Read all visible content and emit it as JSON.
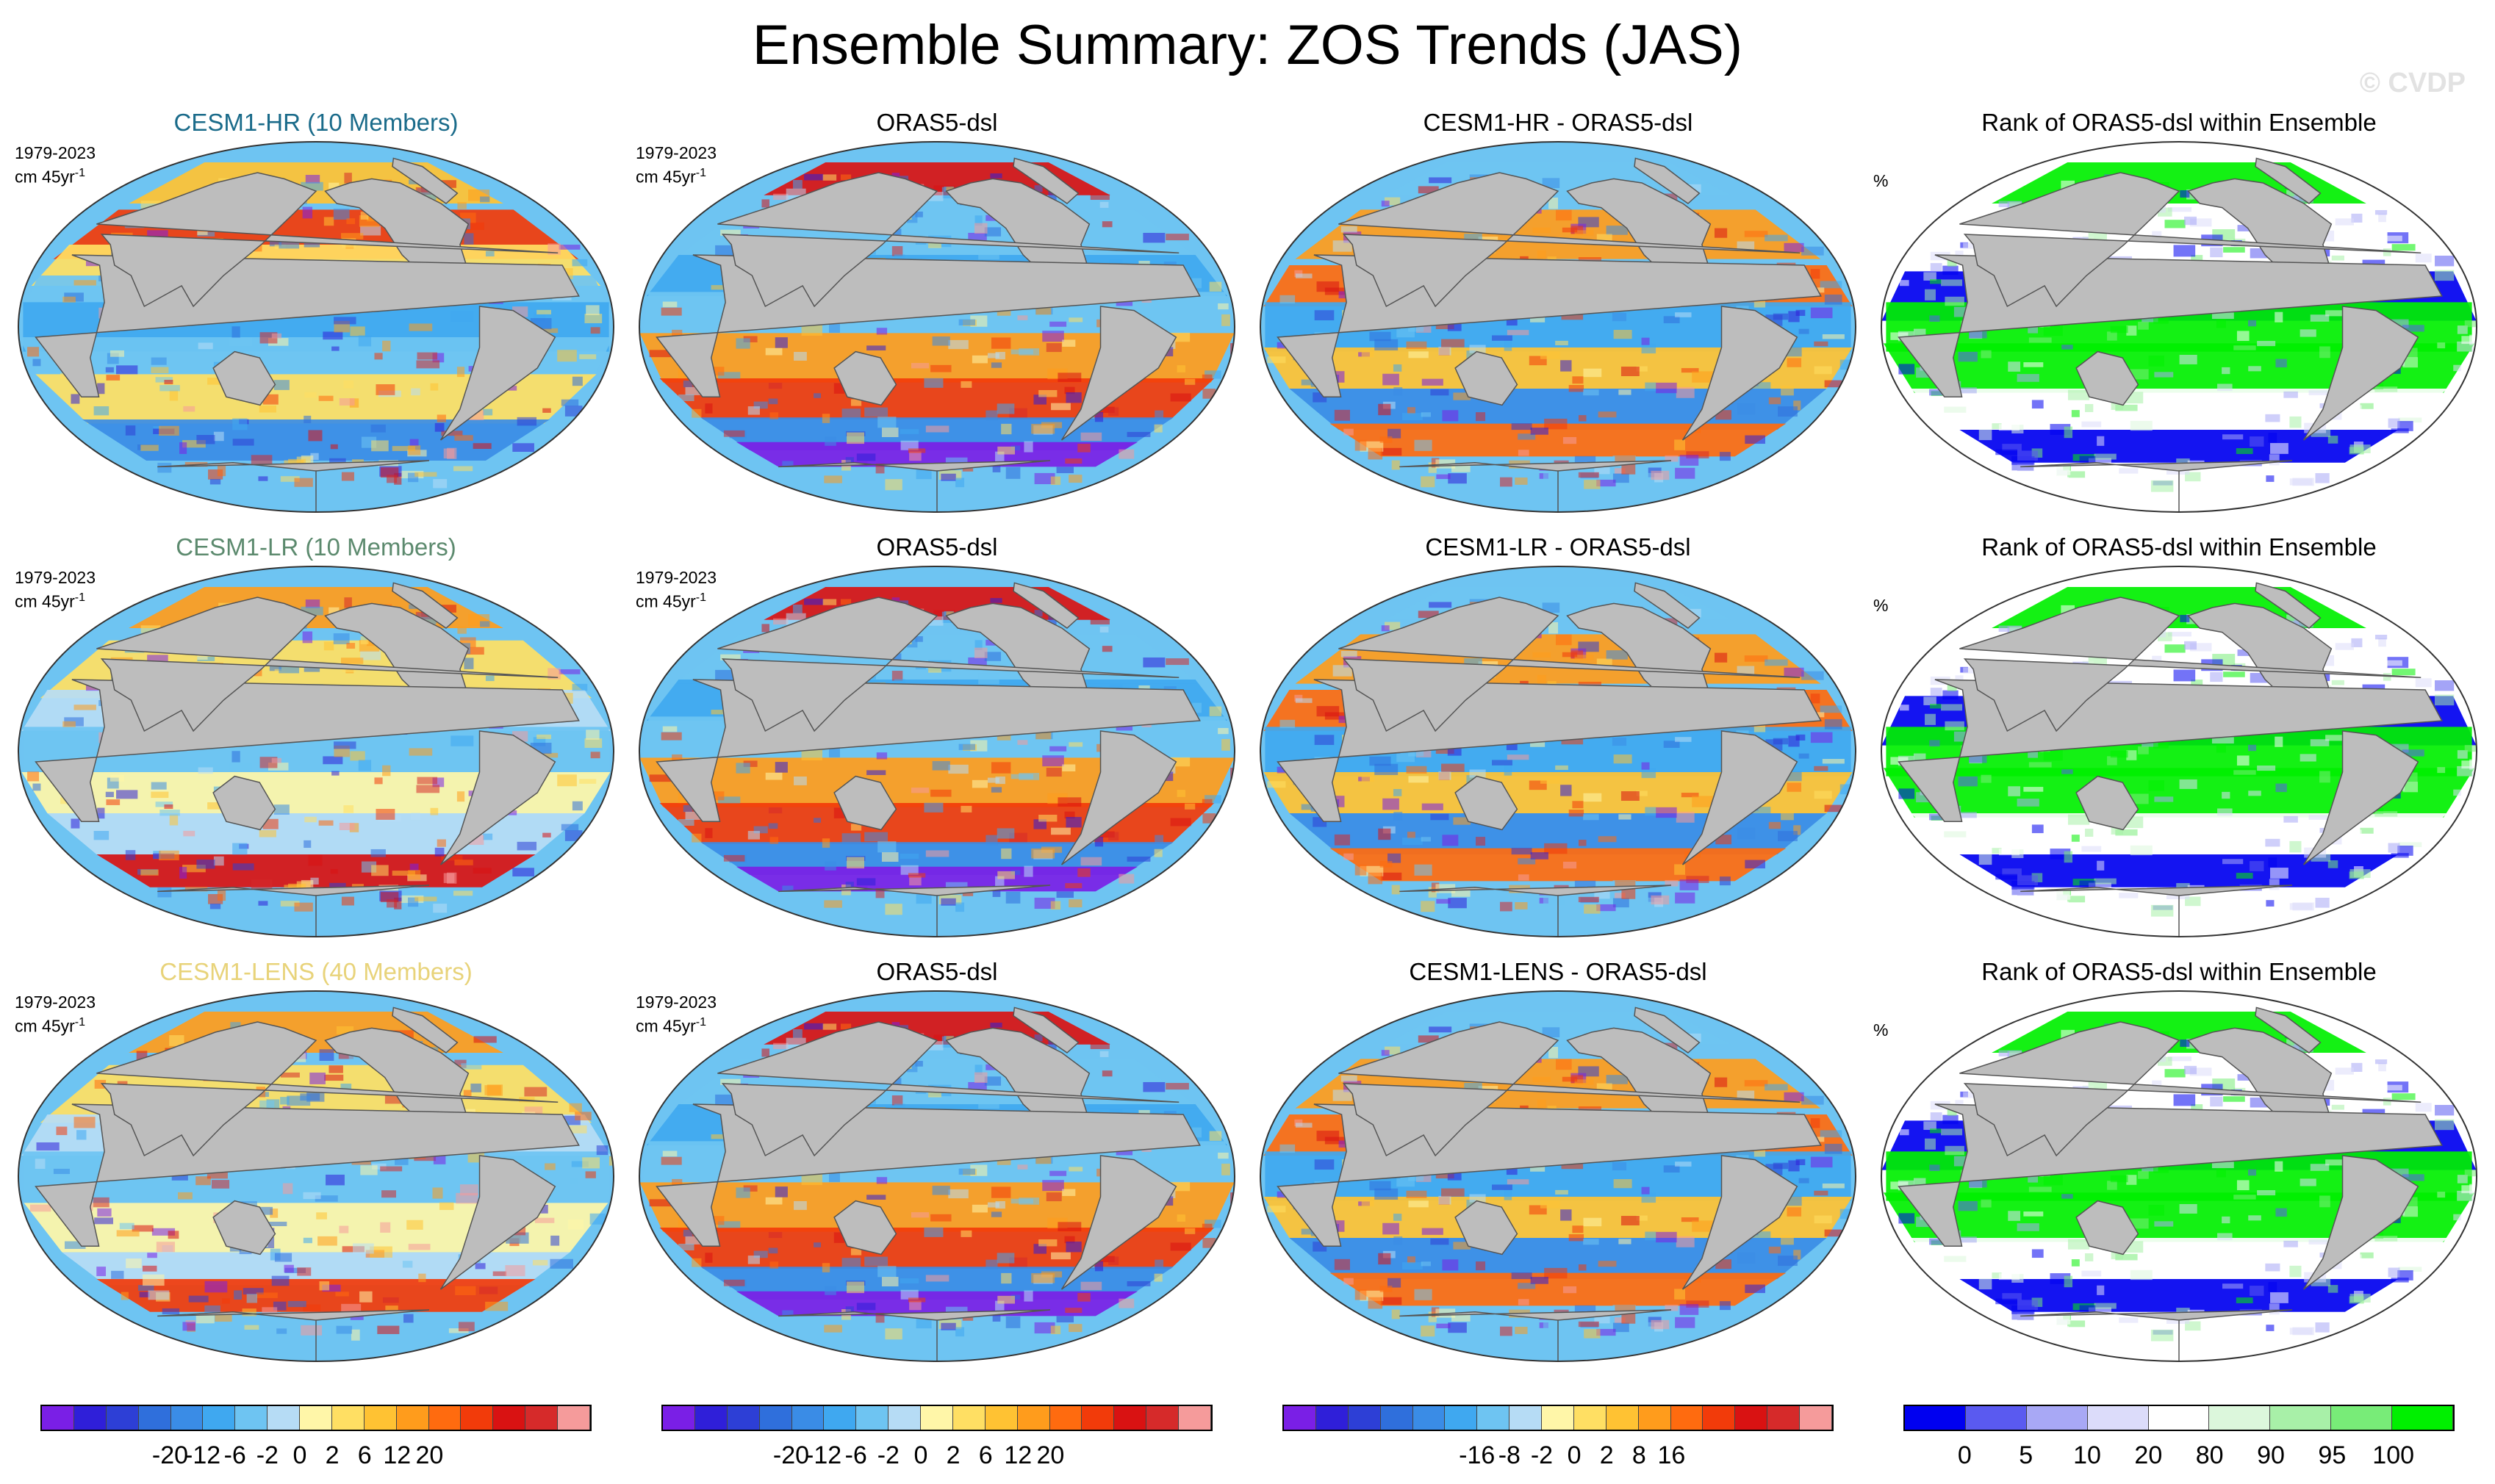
{
  "title": "Ensemble Summary: ZOS Trends (JAS)",
  "watermark": "© CVDP",
  "colors": {
    "land": "#bdbdbd",
    "ocean_outline": "#5a5a5a",
    "diverging": [
      "#7a1fe6",
      "#2f1fd9",
      "#2d3fd6",
      "#2f6fdc",
      "#3a8ce6",
      "#3fa8f0",
      "#6ec4f2",
      "#b6dcf5",
      "#fff6a8",
      "#ffdf63",
      "#ffc233",
      "#ff9c1c",
      "#ff6b0f",
      "#f23b0a",
      "#d91212",
      "#d62a2a",
      "#f59b9b"
    ],
    "rank": [
      "#0000f0",
      "#5a5af0",
      "#a8a8f5",
      "#dcdcfa",
      "#ffffff",
      "#dcf7dc",
      "#a8f0a8",
      "#78ec78",
      "#00f000"
    ]
  },
  "rows": [
    {
      "model": {
        "label": "CESM1-HR (10 Members)",
        "color": "#1a6b8a",
        "period": "1979-2023",
        "units": "cm 45yr",
        "units_sup": "-1",
        "scheme": "model_hr"
      },
      "obs": {
        "label": "ORAS5-dsl",
        "period": "1979-2023",
        "units": "cm 45yr",
        "units_sup": "-1",
        "scheme": "obs"
      },
      "diff": {
        "label": "CESM1-HR - ORAS5-dsl",
        "scheme": "diff"
      },
      "rank": {
        "label": "Rank of ORAS5-dsl within Ensemble",
        "unit": "%",
        "scheme": "rank"
      }
    },
    {
      "model": {
        "label": "CESM1-LR (10 Members)",
        "color": "#5c8a6e",
        "period": "1979-2023",
        "units": "cm 45yr",
        "units_sup": "-1",
        "scheme": "model_lr"
      },
      "obs": {
        "label": "ORAS5-dsl",
        "period": "1979-2023",
        "units": "cm 45yr",
        "units_sup": "-1",
        "scheme": "obs"
      },
      "diff": {
        "label": "CESM1-LR - ORAS5-dsl",
        "scheme": "diff"
      },
      "rank": {
        "label": "Rank of ORAS5-dsl within Ensemble",
        "unit": "%",
        "scheme": "rank"
      }
    },
    {
      "model": {
        "label": "CESM1-LENS (40 Members)",
        "color": "#e8d37a",
        "period": "1979-2023",
        "units": "cm 45yr",
        "units_sup": "-1",
        "scheme": "model_lens"
      },
      "obs": {
        "label": "ORAS5-dsl",
        "period": "1979-2023",
        "units": "cm 45yr",
        "units_sup": "-1",
        "scheme": "obs"
      },
      "diff": {
        "label": "CESM1-LENS - ORAS5-dsl",
        "scheme": "diff"
      },
      "rank": {
        "label": "Rank of ORAS5-dsl within Ensemble",
        "unit": "%",
        "scheme": "rank"
      }
    }
  ],
  "colorbars": [
    {
      "palette": "diverging",
      "labels": [
        "-20",
        "-12",
        "-6",
        "-2",
        "0",
        "2",
        "6",
        "12",
        "20"
      ]
    },
    {
      "palette": "diverging",
      "labels": [
        "-20",
        "-12",
        "-6",
        "-2",
        "0",
        "2",
        "6",
        "12",
        "20"
      ]
    },
    {
      "palette": "diverging",
      "labels": [
        "-16",
        "-8",
        "-2",
        "0",
        "2",
        "8",
        "16"
      ]
    },
    {
      "palette": "rank",
      "labels": [
        "0",
        "5",
        "10",
        "20",
        "80",
        "90",
        "95",
        "100"
      ]
    }
  ]
}
